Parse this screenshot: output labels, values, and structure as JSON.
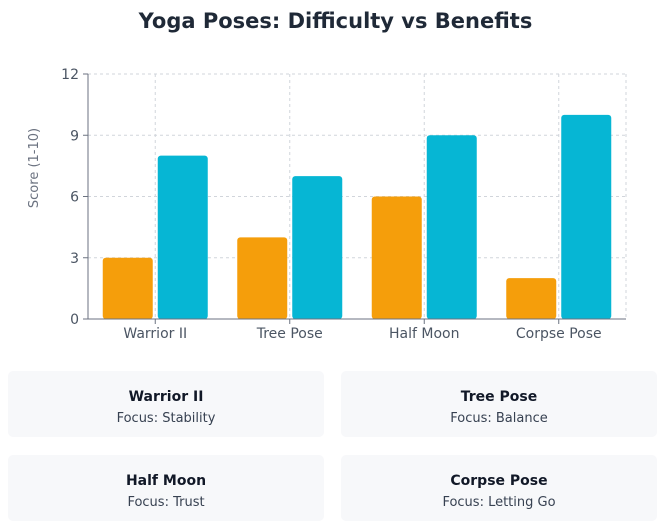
{
  "chart_data": {
    "type": "bar",
    "title": "Yoga Poses: Difficulty vs Benefits",
    "ylabel": "Score (1-10)",
    "xlabel": "",
    "ylim": [
      0,
      12
    ],
    "yticks": [
      0,
      3,
      6,
      9,
      12
    ],
    "categories": [
      "Warrior II",
      "Tree Pose",
      "Half Moon",
      "Corpse Pose"
    ],
    "series": [
      {
        "values": [
          3,
          4,
          6,
          2
        ],
        "color": "#f59e0b"
      },
      {
        "values": [
          8,
          7,
          9,
          10
        ],
        "color": "#06b6d4"
      }
    ],
    "grid": true
  },
  "cards": [
    {
      "name": "Warrior II",
      "focus": "Focus: Stability"
    },
    {
      "name": "Tree Pose",
      "focus": "Focus: Balance"
    },
    {
      "name": "Half Moon",
      "focus": "Focus: Trust"
    },
    {
      "name": "Corpse Pose",
      "focus": "Focus: Letting Go"
    }
  ]
}
